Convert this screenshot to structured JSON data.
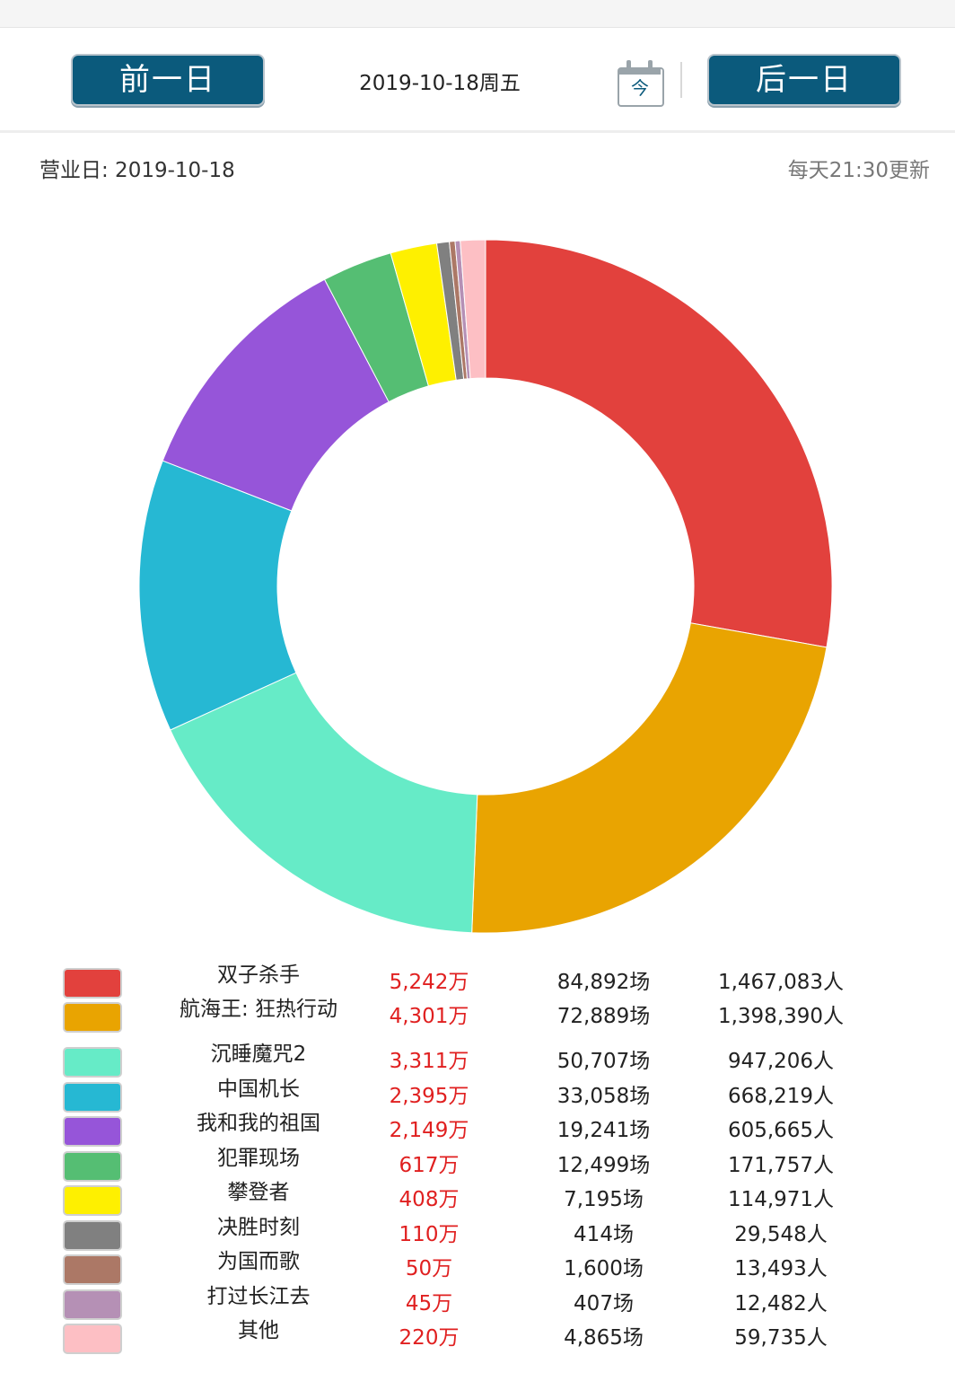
{
  "nav": {
    "prev_label": "前一日",
    "next_label": "后一日",
    "date_display": "2019-10-18周五",
    "today_label": "今"
  },
  "info": {
    "business_day": "营业日: 2019-10-18",
    "update_note": "每天21:30更新"
  },
  "chart_data": {
    "type": "pie",
    "donut": true,
    "unit": "万",
    "categories": [
      "双子杀手",
      "航海王: 狂热行动",
      "沉睡魔咒2",
      "中国机长",
      "我和我的祖国",
      "犯罪现场",
      "攀登者",
      "决胜时刻",
      "为国而歌",
      "打过长江去",
      "其他"
    ],
    "values": [
      5242,
      4301,
      3311,
      2395,
      2149,
      617,
      408,
      110,
      50,
      45,
      220
    ],
    "colors": [
      "#e2413d",
      "#e9a401",
      "#66ebc7",
      "#26b8d3",
      "#9655d9",
      "#55be73",
      "#fef000",
      "#808080",
      "#ac7866",
      "#b590b5",
      "#fdbfc4"
    ],
    "start_angle_deg": 0,
    "direction": "clockwise",
    "legend_position": "bottom"
  },
  "table": {
    "rows": [
      {
        "name": "双子杀手",
        "box": "5,242万",
        "shows": "84,892场",
        "audience": "1,467,083人",
        "color": "#e2413d"
      },
      {
        "name": "航海王: 狂热行动",
        "box": "4,301万",
        "shows": "72,889场",
        "audience": "1,398,390人",
        "color": "#e9a401"
      },
      {
        "name": "沉睡魔咒2",
        "box": "3,311万",
        "shows": "50,707场",
        "audience": "947,206人",
        "color": "#66ebc7"
      },
      {
        "name": "中国机长",
        "box": "2,395万",
        "shows": "33,058场",
        "audience": "668,219人",
        "color": "#26b8d3"
      },
      {
        "name": "我和我的祖国",
        "box": "2,149万",
        "shows": "19,241场",
        "audience": "605,665人",
        "color": "#9655d9"
      },
      {
        "name": "犯罪现场",
        "box": "617万",
        "shows": "12,499场",
        "audience": "171,757人",
        "color": "#55be73"
      },
      {
        "name": "攀登者",
        "box": "408万",
        "shows": "7,195场",
        "audience": "114,971人",
        "color": "#fef000"
      },
      {
        "name": "决胜时刻",
        "box": "110万",
        "shows": "414场",
        "audience": "29,548人",
        "color": "#808080"
      },
      {
        "name": "为国而歌",
        "box": "50万",
        "shows": "1,600场",
        "audience": "13,493人",
        "color": "#ac7866"
      },
      {
        "name": "打过长江去",
        "box": "45万",
        "shows": "407场",
        "audience": "12,482人",
        "color": "#b590b5"
      },
      {
        "name": "其他",
        "box": "220万",
        "shows": "4,865场",
        "audience": "59,735人",
        "color": "#fdbfc4"
      }
    ]
  }
}
